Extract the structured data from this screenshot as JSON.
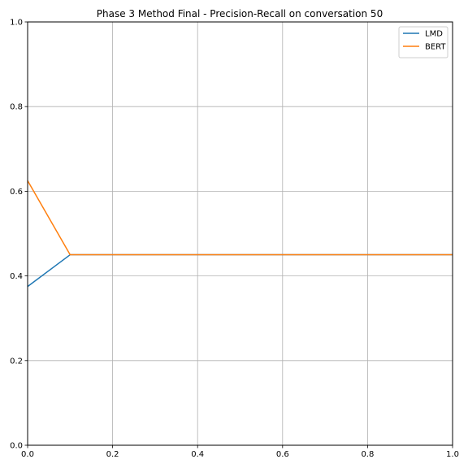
{
  "chart_data": {
    "type": "line",
    "title": "Phase 3 Method Final - Precision-Recall on conversation 50",
    "xlabel": "",
    "ylabel": "",
    "xlim": [
      0,
      1
    ],
    "ylim": [
      0,
      1
    ],
    "grid": true,
    "legend_position": "top-right",
    "x_ticks": [
      "0.0",
      "0.2",
      "0.4",
      "0.6",
      "0.8",
      "1.0"
    ],
    "y_ticks": [
      "0.0",
      "0.2",
      "0.4",
      "0.6",
      "0.8",
      "1.0"
    ],
    "series": [
      {
        "name": "LMD",
        "color": "#1f77b4",
        "x": [
          0.0,
          0.1,
          1.0
        ],
        "y": [
          0.375,
          0.45,
          0.45
        ]
      },
      {
        "name": "BERT",
        "color": "#ff7f0e",
        "x": [
          0.0,
          0.1,
          1.0
        ],
        "y": [
          0.625,
          0.45,
          0.45
        ]
      }
    ]
  }
}
